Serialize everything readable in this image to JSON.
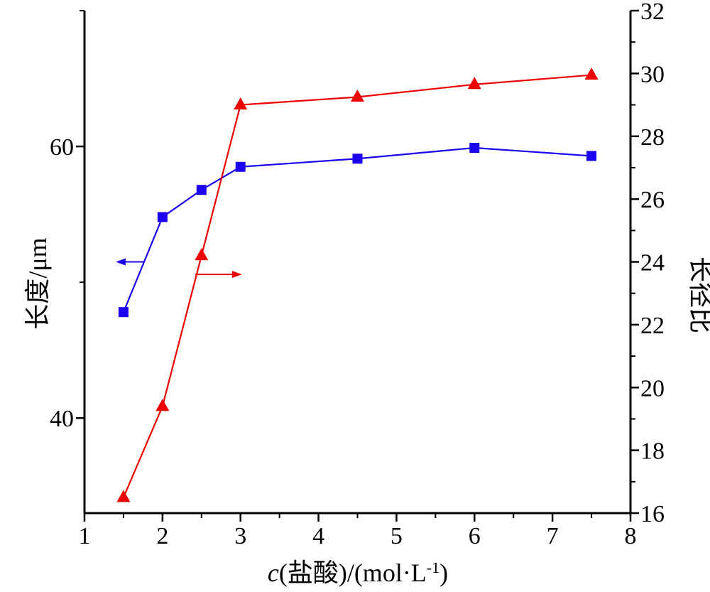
{
  "chart_data": {
    "type": "line",
    "title": "",
    "xlabel": {
      "italic": "c",
      "main": "(盐酸)/(mol·L",
      "superscript": "-1",
      "close": ")"
    },
    "ylabel_left": "长度/μm",
    "ylabel_right": "长径比",
    "xlim": [
      1,
      8
    ],
    "ylim_left": [
      33,
      70
    ],
    "ylim_right": [
      16,
      32
    ],
    "x_ticks": [
      "1",
      "2",
      "3",
      "4",
      "5",
      "6",
      "7",
      "8"
    ],
    "left_ticks": [
      "40",
      "60"
    ],
    "right_ticks": [
      "16",
      "18",
      "20",
      "22",
      "24",
      "26",
      "28",
      "30",
      "32"
    ],
    "grid": false,
    "series": [
      {
        "axis": "left",
        "marker": "square",
        "color": "#1a00ee",
        "x": [
          1.5,
          2.0,
          2.5,
          3.0,
          4.5,
          6.0,
          7.5
        ],
        "y": [
          47.8,
          54.8,
          56.8,
          58.5,
          59.1,
          59.9,
          59.3
        ]
      },
      {
        "axis": "right",
        "marker": "triangle",
        "color": "#ee0000",
        "x": [
          1.5,
          2.0,
          2.5,
          3.0,
          4.5,
          6.0,
          7.5
        ],
        "y": [
          16.5,
          19.4,
          24.2,
          29.0,
          29.25,
          29.65,
          29.95
        ]
      }
    ],
    "annotations": [
      {
        "type": "arrow",
        "direction": "left",
        "color": "#1a00ee",
        "points_to": "left-axis"
      },
      {
        "type": "arrow",
        "direction": "right",
        "color": "#ee0000",
        "points_to": "right-axis"
      }
    ]
  }
}
